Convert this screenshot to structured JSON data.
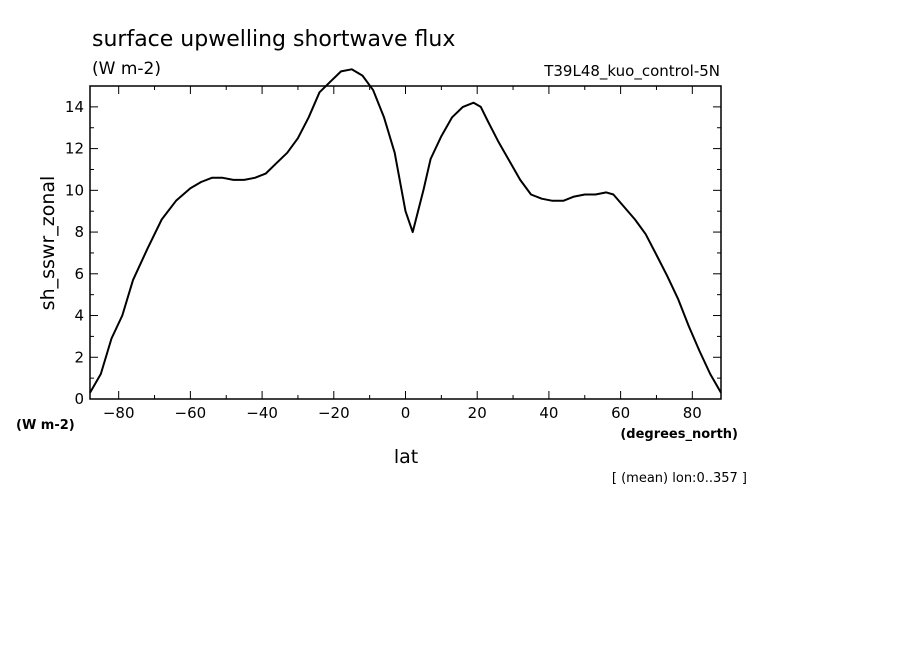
{
  "chart_data": {
    "type": "line",
    "title": "surface upwelling shortwave flux",
    "subtitle": "(W m-2)",
    "dataset_label": "T39L48_kuo_control-5N",
    "xlabel": "lat",
    "x_units": "(degrees_north)",
    "ylabel": "sh_sswr_zonal",
    "y_units": "(W m-2)",
    "footnote": "[ (mean) lon:0..357 ]",
    "xlim": [
      -88,
      88
    ],
    "ylim": [
      0,
      15
    ],
    "x_ticks": [
      -80,
      -60,
      -40,
      -20,
      0,
      20,
      40,
      60,
      80
    ],
    "x_tick_labels": [
      "−80",
      "−60",
      "−40",
      "−20",
      "0",
      "20",
      "40",
      "60",
      "80"
    ],
    "y_ticks": [
      0,
      2,
      4,
      6,
      8,
      10,
      12,
      14
    ],
    "y_tick_labels": [
      "0",
      "2",
      "4",
      "6",
      "8",
      "10",
      "12",
      "14"
    ],
    "grid": false,
    "series": [
      {
        "x": [
          -88,
          -85,
          -82,
          -79,
          -76,
          -72,
          -68,
          -64,
          -60,
          -57,
          -54,
          -51,
          -48,
          -45,
          -42,
          -39,
          -36,
          -33,
          -30,
          -27,
          -24,
          -21,
          -18,
          -15,
          -12,
          -9,
          -6,
          -3,
          0,
          2,
          5,
          7,
          10,
          13,
          16,
          19,
          21,
          23,
          26,
          29,
          32,
          35,
          38,
          41,
          44,
          47,
          50,
          53,
          56,
          58,
          61,
          64,
          67,
          70,
          73,
          76,
          79,
          82,
          85,
          88
        ],
        "y": [
          0.3,
          1.2,
          2.9,
          4.0,
          5.7,
          7.2,
          8.6,
          9.5,
          10.1,
          10.4,
          10.6,
          10.6,
          10.5,
          10.5,
          10.6,
          10.8,
          11.3,
          11.8,
          12.5,
          13.5,
          14.7,
          15.2,
          15.7,
          15.8,
          15.5,
          14.8,
          13.5,
          11.8,
          9.0,
          8.0,
          10.0,
          11.5,
          12.6,
          13.5,
          14.0,
          14.2,
          14.0,
          13.3,
          12.3,
          11.4,
          10.5,
          9.8,
          9.6,
          9.5,
          9.5,
          9.7,
          9.8,
          9.8,
          9.9,
          9.8,
          9.2,
          8.6,
          7.9,
          6.9,
          5.9,
          4.8,
          3.5,
          2.3,
          1.2,
          0.3
        ]
      }
    ]
  }
}
